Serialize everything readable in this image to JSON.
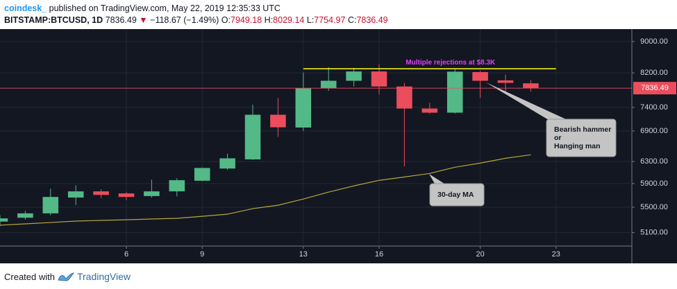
{
  "chart_data": {
    "type": "candlestick",
    "author": "coindesk_",
    "title": "published on TradingView.com, May 22, 2019 12:35:33 UTC",
    "symbol": "BITSTAMP:BTCUSD, 1D",
    "last": 7836.49,
    "change": "−118.67 (−1.49%)",
    "ohlc": [
      {
        "label": "O:",
        "value": 7949.18
      },
      {
        "label": "H:",
        "value": 8029.14
      },
      {
        "label": "L:",
        "value": 7754.97
      },
      {
        "label": "C:",
        "value": 7836.49
      }
    ],
    "x": [
      1,
      2,
      3,
      4,
      5,
      6,
      7,
      8,
      9,
      10,
      11,
      12,
      13,
      14,
      15,
      16,
      17,
      18,
      19,
      20,
      21,
      22
    ],
    "open": [
      5270,
      5330,
      5400,
      5660,
      5765,
      5730,
      5685,
      5765,
      5950,
      6170,
      6340,
      7240,
      6970,
      7830,
      8010,
      8235,
      7875,
      7375,
      7285,
      8220,
      8020,
      7949.18
    ],
    "high": [
      5370,
      5440,
      5810,
      5870,
      5800,
      5755,
      5970,
      5995,
      6190,
      6450,
      7460,
      7610,
      8210,
      8340,
      8320,
      8415,
      7960,
      7500,
      8290,
      8250,
      8160,
      8029.14
    ],
    "low": [
      5200,
      5300,
      5370,
      5535,
      5650,
      5615,
      5660,
      5680,
      5940,
      6145,
      6330,
      6780,
      6900,
      7775,
      7875,
      7690,
      6210,
      7260,
      7265,
      7610,
      7720,
      7754.97
    ],
    "close": [
      5320,
      5400,
      5670,
      5765,
      5705,
      5670,
      5765,
      5960,
      6180,
      6360,
      7240,
      6975,
      7830,
      8010,
      8235,
      7875,
      7375,
      7285,
      8230,
      8010,
      7960,
      7836.49
    ],
    "up_color": "#53b987",
    "down_color": "#eb4d5c",
    "ma": {
      "label": "30-day MA",
      "color": "#b8a73a",
      "values": [
        5213,
        5234,
        5255,
        5277,
        5288,
        5298,
        5310,
        5321,
        5353,
        5387,
        5476,
        5532,
        5635,
        5752,
        5859,
        5957,
        6017,
        6080,
        6194,
        6270,
        6361,
        6427
      ]
    },
    "last_line_color": "#eb4d5c",
    "resistance": {
      "value": 8300,
      "x": [
        13,
        23
      ],
      "color": "#ffff00",
      "label": "Multiple rejections at $8.3K",
      "label_color": "#e040fb"
    },
    "callouts": [
      {
        "lines": [
          "Bearish hammer",
          "or",
          "Hanging man"
        ]
      },
      {
        "lines": [
          "30-day MA"
        ]
      }
    ],
    "xlim": [
      1,
      26
    ],
    "xticks": [
      6,
      9,
      13,
      16,
      20,
      23
    ],
    "ylim": [
      4900,
      9340
    ],
    "log_y": true,
    "yticks": [
      {
        "value": 5100,
        "label": "5100.00"
      },
      {
        "value": 5500,
        "label": "5500.00"
      },
      {
        "value": 5900,
        "label": "5900.00"
      },
      {
        "value": 6300,
        "label": "6300.00"
      },
      {
        "value": 6900,
        "label": "6900.00"
      },
      {
        "value": 7400,
        "label": "7400.00"
      },
      {
        "value": 8200,
        "label": "8200.00"
      },
      {
        "value": 9000,
        "label": "9000.00"
      }
    ],
    "grid": true,
    "footer": {
      "text": "Created with",
      "brand": "TradingView"
    }
  }
}
